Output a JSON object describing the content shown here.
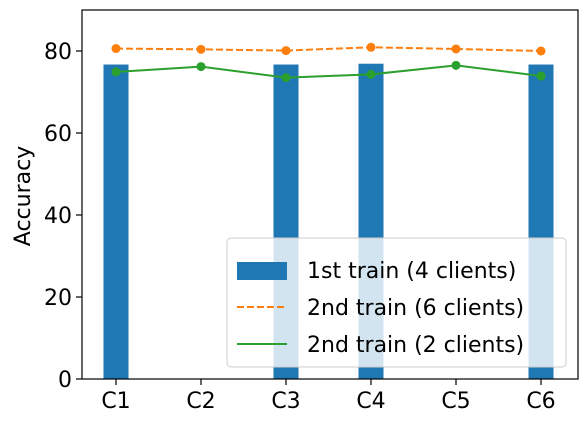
{
  "chart_data": {
    "type": "bar",
    "categories": [
      "C1",
      "C2",
      "C3",
      "C4",
      "C5",
      "C6"
    ],
    "title": "",
    "xlabel": "",
    "ylabel": "Accuracy",
    "ylim": [
      0,
      90
    ],
    "yticks": [
      0,
      20,
      40,
      60,
      80
    ],
    "grid": false,
    "legend_position": "lower-right",
    "series": [
      {
        "name": "1st train (4 clients)",
        "kind": "bar",
        "color": "#1f77b4",
        "values": [
          76.7,
          null,
          76.7,
          76.9,
          null,
          76.7
        ]
      },
      {
        "name": "2nd train (6 clients)",
        "kind": "line",
        "style": "dashed",
        "marker": "circle",
        "color": "#ff7f0e",
        "values": [
          80.6,
          80.4,
          80.1,
          80.9,
          80.5,
          80.0
        ]
      },
      {
        "name": "2nd train (2 clients)",
        "kind": "line",
        "style": "solid",
        "marker": "circle",
        "color": "#2ca02c",
        "values": [
          74.9,
          76.2,
          73.5,
          74.3,
          76.5,
          73.9
        ]
      }
    ]
  }
}
